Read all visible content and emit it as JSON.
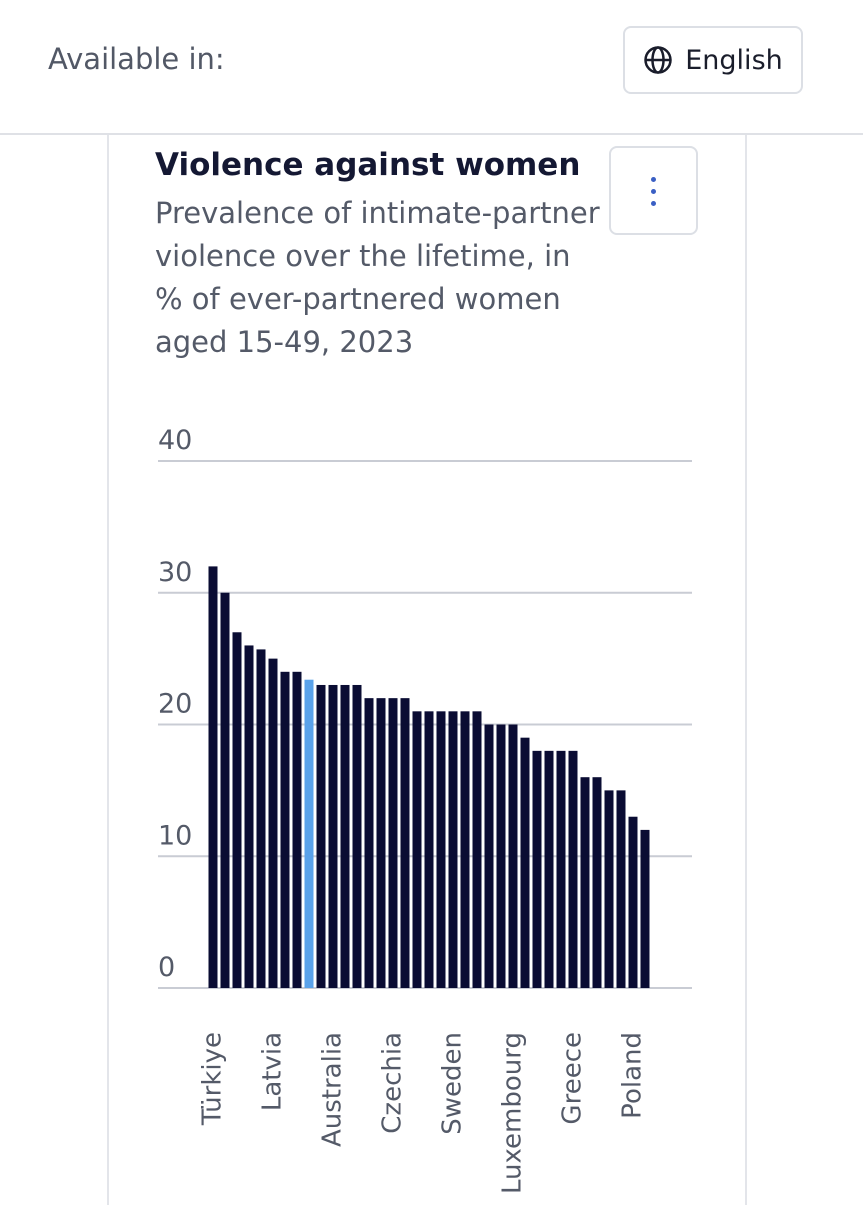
{
  "header": {
    "available_label": "Available in:",
    "language": "English"
  },
  "chart_data": {
    "type": "bar",
    "title": "Violence against women",
    "subtitle": "Prevalence of intimate-partner violence over the lifetime, in % of ever-partnered women aged 15-49, 2023",
    "categories": [
      "Türkiye",
      null,
      null,
      null,
      null,
      "Latvia",
      null,
      null,
      null,
      null,
      "Australia",
      null,
      null,
      null,
      null,
      "Czechia",
      null,
      null,
      null,
      null,
      "Sweden",
      null,
      null,
      null,
      null,
      "Luxembourg",
      null,
      null,
      null,
      null,
      "Greece",
      null,
      null,
      null,
      null,
      "Poland",
      null
    ],
    "values": [
      32,
      30,
      27,
      26,
      25.7,
      25,
      24,
      24,
      23.4,
      23,
      23,
      23,
      23,
      22,
      22,
      22,
      22,
      21,
      21,
      21,
      21,
      21,
      21,
      20,
      20,
      20,
      19,
      18,
      18,
      18,
      18,
      16,
      16,
      15,
      15,
      13,
      12
    ],
    "colors": [
      "#0a0c33",
      "#0a0c33",
      "#0a0c33",
      "#0a0c33",
      "#0a0c33",
      "#0a0c33",
      "#0a0c33",
      "#0a0c33",
      "#5aa2ea",
      "#0a0c33",
      "#0a0c33",
      "#0a0c33",
      "#0a0c33",
      "#0a0c33",
      "#0a0c33",
      "#0a0c33",
      "#0a0c33",
      "#0a0c33",
      "#0a0c33",
      "#0a0c33",
      "#0a0c33",
      "#0a0c33",
      "#0a0c33",
      "#0a0c33",
      "#0a0c33",
      "#0a0c33",
      "#0a0c33",
      "#0a0c33",
      "#0a0c33",
      "#0a0c33",
      "#0a0c33",
      "#0a0c33",
      "#0a0c33",
      "#0a0c33",
      "#0a0c33",
      "#0a0c33",
      "#0a0c33"
    ],
    "ylim": [
      0,
      40
    ],
    "yticks": [
      0,
      10,
      20,
      30,
      40
    ],
    "grid": true
  }
}
